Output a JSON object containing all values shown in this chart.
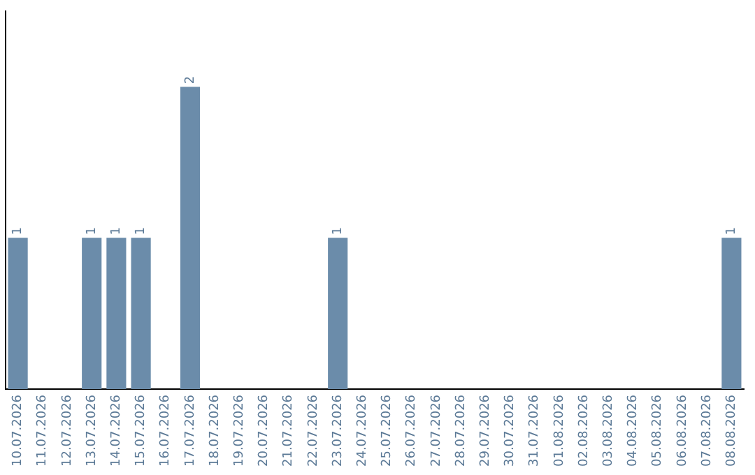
{
  "chart_data": {
    "type": "bar",
    "categories": [
      "10.07.2026",
      "11.07.2026",
      "12.07.2026",
      "13.07.2026",
      "14.07.2026",
      "15.07.2026",
      "16.07.2026",
      "17.07.2026",
      "18.07.2026",
      "19.07.2026",
      "20.07.2026",
      "21.07.2026",
      "22.07.2026",
      "23.07.2026",
      "24.07.2026",
      "25.07.2026",
      "26.07.2026",
      "27.07.2026",
      "28.07.2026",
      "29.07.2026",
      "30.07.2026",
      "31.07.2026",
      "01.08.2026",
      "02.08.2026",
      "03.08.2026",
      "04.08.2026",
      "05.08.2026",
      "06.08.2026",
      "07.08.2026",
      "08.08.2026"
    ],
    "values": [
      1,
      0,
      0,
      1,
      1,
      1,
      0,
      2,
      0,
      0,
      0,
      0,
      0,
      1,
      0,
      0,
      0,
      0,
      0,
      0,
      0,
      0,
      0,
      0,
      0,
      0,
      0,
      0,
      0,
      1
    ],
    "value_labels": [
      "1",
      null,
      null,
      "1",
      "1",
      "1",
      null,
      "2",
      null,
      null,
      null,
      null,
      null,
      "1",
      null,
      null,
      null,
      null,
      null,
      null,
      null,
      null,
      null,
      null,
      null,
      null,
      null,
      null,
      null,
      "1"
    ],
    "color": "#6b8caa",
    "grid": false,
    "legend": false,
    "tick_labels": "x"
  }
}
